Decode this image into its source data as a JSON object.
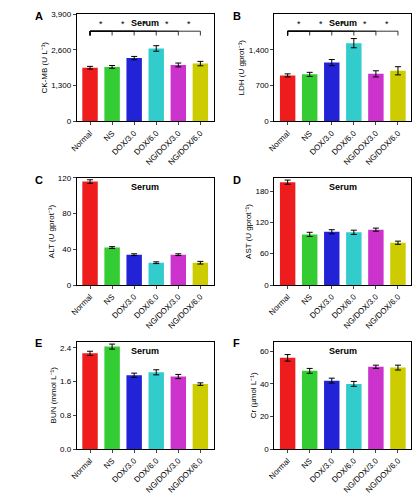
{
  "chart_data": [
    {
      "type": "bar",
      "title": "Serum",
      "ylabel": "CK-MB (U L⁻¹)",
      "categories": [
        "Normal",
        "NS",
        "DOX/3.0",
        "DOX/6.0",
        "NG/DOX/3.0",
        "NG/DOX/6.0"
      ],
      "values": [
        1950,
        1980,
        2300,
        2650,
        2050,
        2100
      ],
      "errors": [
        50,
        50,
        60,
        100,
        70,
        80
      ],
      "colors": [
        "#ee1c1c",
        "#33cc33",
        "#2222d6",
        "#33cccc",
        "#cc33cc",
        "#cccc00"
      ],
      "ylim": [
        0,
        3900
      ],
      "yticks": [
        0,
        {
          "value": 1300,
          "label": "1,300"
        },
        {
          "value": 2600,
          "label": "2,600"
        },
        {
          "value": 3900,
          "label": "3,900"
        }
      ],
      "annotations": [
        {
          "text": "A"
        },
        {
          "text": "*",
          "from": "Normal",
          "to": "NS"
        },
        {
          "text": "*",
          "from": "Normal",
          "to": "DOX/3.0"
        },
        {
          "text": "*",
          "from": "Normal",
          "to": "DOX/6.0"
        },
        {
          "text": "*",
          "from": "Normal",
          "to": "NG/DOX/3.0"
        },
        {
          "text": "*",
          "from": "Normal",
          "to": "NG/DOX/6.0"
        }
      ]
    },
    {
      "type": "bar",
      "title": "Serum",
      "ylabel": "LDH (U gprot⁻¹)",
      "categories": [
        "Normal",
        "NS",
        "DOX/3.0",
        "DOX/6.0",
        "NG/DOX/3.0",
        "NG/DOX/6.0"
      ],
      "values": [
        900,
        920,
        1150,
        1530,
        930,
        990
      ],
      "errors": [
        30,
        40,
        60,
        90,
        60,
        80
      ],
      "colors": [
        "#ee1c1c",
        "#33cc33",
        "#2222d6",
        "#33cccc",
        "#cc33cc",
        "#cccc00"
      ],
      "ylim": [
        0,
        2100
      ],
      "yticks": [
        0,
        700,
        {
          "value": 1400,
          "label": "1,400"
        }
      ],
      "annotations": [
        {
          "text": "B"
        },
        {
          "text": "*",
          "from": "Normal",
          "to": "NS"
        },
        {
          "text": "*",
          "from": "Normal",
          "to": "DOX/3.0"
        },
        {
          "text": "*",
          "from": "Normal",
          "to": "DOX/6.0"
        },
        {
          "text": "*",
          "from": "Normal",
          "to": "NG/DOX/3.0"
        },
        {
          "text": "*",
          "from": "Normal",
          "to": "NG/DOX/6.0"
        }
      ]
    },
    {
      "type": "bar",
      "title": "Serum",
      "ylabel": "ALT (U gprot⁻¹)",
      "categories": [
        "Normal",
        "NS",
        "DOX/3.0",
        "DOX/6.0",
        "NG/DOX/3.0",
        "NG/DOX/6.0"
      ],
      "values": [
        116,
        42,
        34,
        25,
        34,
        25
      ],
      "errors": [
        2,
        1,
        1,
        1,
        1,
        1.5
      ],
      "colors": [
        "#ee1c1c",
        "#33cc33",
        "#2222d6",
        "#33cccc",
        "#cc33cc",
        "#cccc00"
      ],
      "ylim": [
        0,
        120
      ],
      "yticks": [
        0,
        40,
        80,
        120
      ],
      "annotations": [
        {
          "text": "C"
        }
      ]
    },
    {
      "type": "bar",
      "title": "Serum",
      "ylabel": "AST (U gprot⁻¹)",
      "categories": [
        "Normal",
        "NS",
        "DOX/3.0",
        "DOX/6.0",
        "NG/DOX/3.0",
        "NG/DOX/6.0"
      ],
      "values": [
        197,
        97,
        102,
        101,
        106,
        81
      ],
      "errors": [
        4,
        4,
        4,
        4,
        3,
        3
      ],
      "colors": [
        "#ee1c1c",
        "#33cc33",
        "#2222d6",
        "#33cccc",
        "#cc33cc",
        "#cccc00"
      ],
      "ylim": [
        0,
        205
      ],
      "yticks": [
        0,
        60,
        120,
        180
      ],
      "annotations": [
        {
          "text": "D"
        }
      ]
    },
    {
      "type": "bar",
      "title": "Serum",
      "ylabel": "BUN (mmol L⁻¹)",
      "categories": [
        "Normal",
        "NS",
        "DOX/3.0",
        "DOX/6.0",
        "NG/DOX/3.0",
        "NG/DOX/6.0"
      ],
      "values": [
        2.27,
        2.43,
        1.75,
        1.82,
        1.72,
        1.54
      ],
      "errors": [
        0.05,
        0.06,
        0.05,
        0.06,
        0.05,
        0.03
      ],
      "colors": [
        "#ee1c1c",
        "#33cc33",
        "#2222d6",
        "#33cccc",
        "#cc33cc",
        "#cccc00"
      ],
      "ylim": [
        0,
        2.55
      ],
      "yticks": [
        {
          "value": 0,
          "label": "0.0"
        },
        0.8,
        1.6,
        2.4
      ],
      "annotations": [
        {
          "text": "E"
        }
      ]
    },
    {
      "type": "bar",
      "title": "Serum",
      "ylabel": "Cr (µmol L⁻¹)",
      "categories": [
        "Normal",
        "NS",
        "DOX/3.0",
        "DOX/6.0",
        "NG/DOX/3.0",
        "NG/DOX/6.0"
      ],
      "values": [
        56,
        48,
        42,
        40,
        50.5,
        50
      ],
      "errors": [
        2,
        1.5,
        1.5,
        1.5,
        1,
        1.5
      ],
      "colors": [
        "#ee1c1c",
        "#33cc33",
        "#2222d6",
        "#33cccc",
        "#cc33cc",
        "#cccc00"
      ],
      "ylim": [
        0,
        66
      ],
      "yticks": [
        0,
        20,
        40,
        60
      ],
      "annotations": [
        {
          "text": "F"
        }
      ]
    }
  ]
}
